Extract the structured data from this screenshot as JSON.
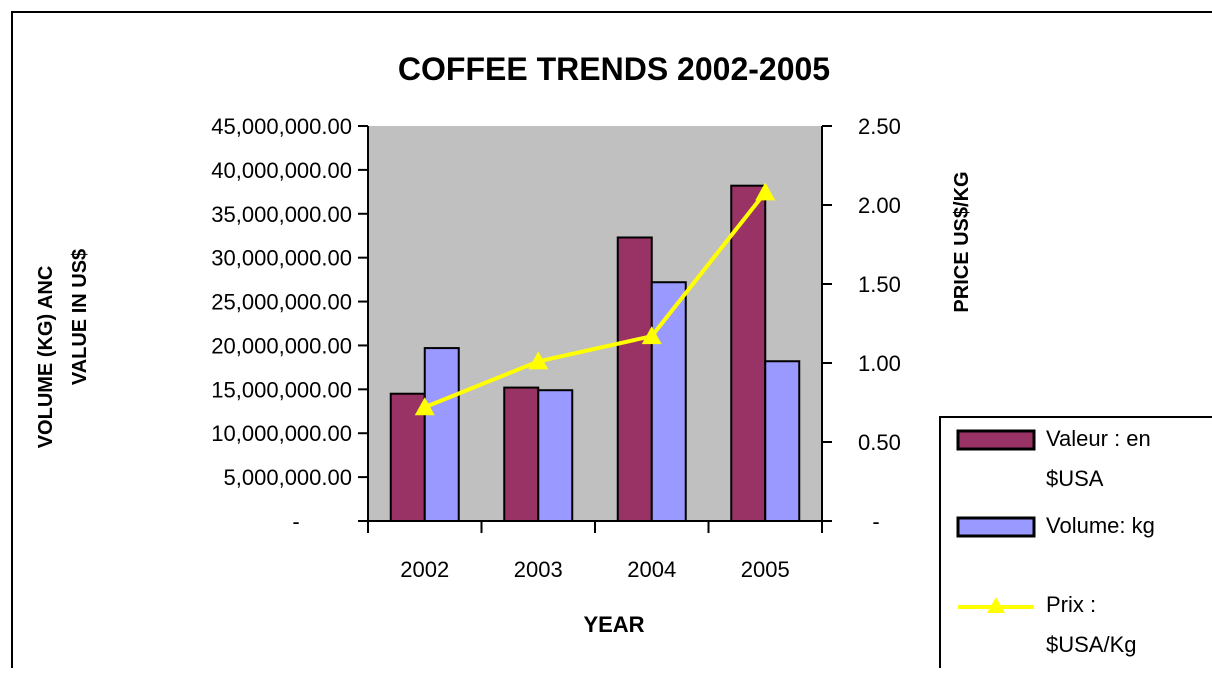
{
  "chart_data": {
    "type": "bar",
    "title": "COFFEE TRENDS 2002-2005",
    "xlabel": "YEAR",
    "ylabel_line1": "VOLUME (KG) ANC",
    "ylabel_line2": "VALUE IN US$",
    "ylabel_right": "PRICE US$/KG",
    "categories": [
      "2002",
      "2003",
      "2004",
      "2005"
    ],
    "y_ticks": [
      "-",
      "5,000,000.00",
      "10,000,000.00",
      "15,000,000.00",
      "20,000,000.00",
      "25,000,000.00",
      "30,000,000.00",
      "35,000,000.00",
      "40,000,000.00",
      "45,000,000.00"
    ],
    "y_right_ticks": [
      "-",
      "0.50",
      "1.00",
      "1.50",
      "2.00",
      "2.50"
    ],
    "ylim": [
      0,
      45000000
    ],
    "ylim_right": [
      0,
      2.5
    ],
    "plot_background": "#c0c0c0",
    "series": [
      {
        "name": "Valeur : en $USA",
        "type": "bar",
        "axis": "left",
        "color": "#993366",
        "values": [
          14500000,
          15200000,
          32300000,
          38200000
        ]
      },
      {
        "name": "Volume: kg",
        "type": "bar",
        "axis": "left",
        "color": "#9999ff",
        "values": [
          19700000,
          14900000,
          27200000,
          18200000
        ]
      },
      {
        "name": "Prix : $USA/Kg",
        "type": "line",
        "axis": "right",
        "color": "#ffff00",
        "marker": "triangle",
        "values": [
          0.72,
          1.01,
          1.17,
          2.08
        ]
      }
    ],
    "legend": {
      "placement": "right",
      "entries": [
        [
          "Valeur : en",
          "$USA"
        ],
        [
          "Volume: kg"
        ],
        [
          "Prix :",
          "$USA/Kg"
        ]
      ]
    }
  }
}
